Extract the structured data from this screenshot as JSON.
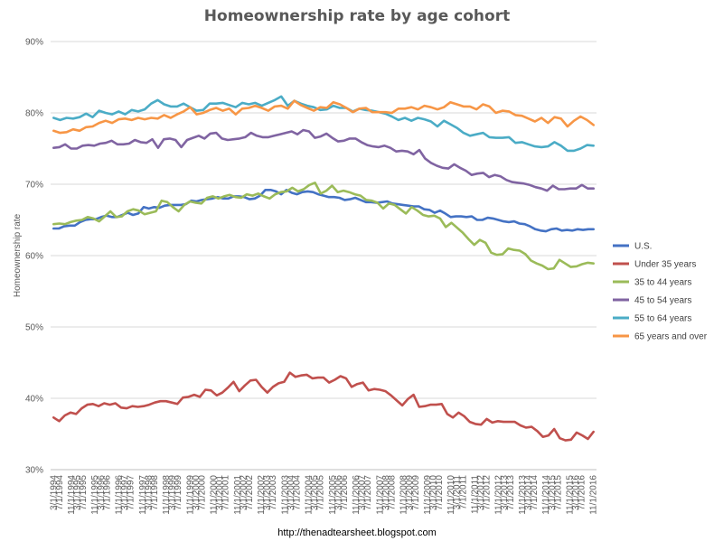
{
  "chart_data": {
    "type": "line",
    "title": "Homeownership rate by age cohort",
    "ylabel": "Homeownership rate",
    "xlabel": "",
    "ylim": [
      30,
      90
    ],
    "yticks": [
      "30%",
      "40%",
      "50%",
      "60%",
      "70%",
      "80%",
      "90%"
    ],
    "grid": "horizontal",
    "legend_position": "right",
    "x_start": "1994Q1",
    "x_tick_labels": [
      "3/1/1994",
      "7/1/1994",
      "11/1/1994",
      "3/1/1995",
      "7/1/1995",
      "11/1/1995",
      "3/1/1996",
      "7/1/1996",
      "11/1/1996",
      "3/1/1997",
      "7/1/1997",
      "11/1/1997",
      "3/1/1998",
      "7/1/1998",
      "11/1/1998",
      "3/1/1999",
      "7/1/1999",
      "11/1/1999",
      "3/1/2000",
      "7/1/2000",
      "11/1/2000",
      "3/1/2001",
      "7/1/2001",
      "11/1/2001",
      "3/1/2002",
      "7/1/2002",
      "11/1/2002",
      "3/1/2003",
      "7/1/2003",
      "11/1/2003",
      "3/1/2004",
      "7/1/2004",
      "11/1/2004",
      "3/1/2005",
      "7/1/2005",
      "11/1/2005",
      "3/1/2006",
      "7/1/2006",
      "11/1/2006",
      "3/1/2007",
      "7/1/2007",
      "11/1/2007",
      "3/1/2008",
      "7/1/2008",
      "11/1/2008",
      "3/1/2009",
      "7/1/2009",
      "11/1/2009",
      "3/1/2010",
      "7/1/2010",
      "11/1/2010",
      "3/1/2011",
      "7/1/2011",
      "11/1/2011",
      "3/1/2012",
      "7/1/2012",
      "11/1/2012",
      "3/1/2013",
      "7/1/2013",
      "11/1/2013",
      "3/1/2014",
      "7/1/2014",
      "11/1/2014",
      "3/1/2015",
      "7/1/2015",
      "11/1/2015",
      "3/1/2016",
      "7/1/2016",
      "11/1/2016"
    ],
    "series": [
      {
        "name": "U.S.",
        "color": "#4472c4",
        "values": [
          63.8,
          63.8,
          64.1,
          64.2,
          64.2,
          64.7,
          65.0,
          65.1,
          65.1,
          65.4,
          65.6,
          65.4,
          65.4,
          65.7,
          66.0,
          65.7,
          65.9,
          66.8,
          66.6,
          66.8,
          66.7,
          67.0,
          67.1,
          67.1,
          67.1,
          67.2,
          67.7,
          67.6,
          67.8,
          67.9,
          68.0,
          68.2,
          68.0,
          68.0,
          68.3,
          68.3,
          68.2,
          67.9,
          68.0,
          68.4,
          69.2,
          69.2,
          69.0,
          68.6,
          69.2,
          68.8,
          68.6,
          68.9,
          69.0,
          68.9,
          68.6,
          68.4,
          68.2,
          68.2,
          68.1,
          67.8,
          67.9,
          68.1,
          67.8,
          67.5,
          67.5,
          67.4,
          67.5,
          67.6,
          67.3,
          67.2,
          67.1,
          67.0,
          66.9,
          66.9,
          66.5,
          66.4,
          66.0,
          66.3,
          65.9,
          65.4,
          65.5,
          65.5,
          65.4,
          65.5,
          65.0,
          65.0,
          65.3,
          65.2,
          65.0,
          64.8,
          64.7,
          64.8,
          64.5,
          64.4,
          64.1,
          63.7,
          63.5,
          63.4,
          63.7,
          63.8,
          63.5,
          63.6,
          63.5,
          63.7,
          63.6,
          63.7,
          63.7
        ]
      },
      {
        "name": "Under 35 years",
        "color": "#c0504d",
        "values": [
          37.3,
          36.8,
          37.6,
          38.0,
          37.8,
          38.6,
          39.1,
          39.2,
          38.9,
          39.3,
          39.1,
          39.3,
          38.7,
          38.6,
          38.9,
          38.8,
          38.9,
          39.1,
          39.4,
          39.6,
          39.6,
          39.4,
          39.2,
          40.1,
          40.2,
          40.5,
          40.2,
          41.2,
          41.1,
          40.4,
          40.8,
          41.5,
          42.3,
          41.0,
          41.8,
          42.5,
          42.6,
          41.6,
          40.8,
          41.6,
          42.1,
          42.3,
          43.6,
          43.0,
          43.2,
          43.3,
          42.8,
          42.9,
          42.9,
          42.2,
          42.6,
          43.1,
          42.8,
          41.6,
          42.0,
          42.2,
          41.1,
          41.3,
          41.2,
          41.0,
          40.4,
          39.7,
          39.0,
          39.9,
          40.5,
          38.8,
          38.9,
          39.1,
          39.1,
          39.2,
          37.8,
          37.3,
          38.0,
          37.5,
          36.7,
          36.4,
          36.3,
          37.1,
          36.6,
          36.8,
          36.7,
          36.7,
          36.7,
          36.2,
          35.9,
          36.0,
          35.4,
          34.6,
          34.8,
          35.7,
          34.4,
          34.1,
          34.2,
          35.2,
          34.8,
          34.3,
          35.3
        ]
      },
      {
        "name": "35 to 44 years",
        "color": "#9bbb59",
        "values": [
          64.4,
          64.5,
          64.4,
          64.7,
          64.9,
          65.0,
          65.4,
          65.2,
          64.8,
          65.5,
          66.2,
          65.4,
          65.5,
          66.2,
          66.5,
          66.3,
          65.8,
          66.0,
          66.2,
          67.7,
          67.5,
          66.8,
          66.2,
          67.1,
          67.6,
          67.4,
          67.3,
          68.1,
          68.3,
          68.0,
          68.3,
          68.5,
          68.2,
          68.1,
          68.6,
          68.4,
          68.7,
          68.3,
          68.0,
          68.6,
          68.9,
          69.0,
          69.5,
          69.0,
          69.3,
          69.9,
          70.2,
          68.7,
          69.1,
          69.8,
          68.9,
          69.1,
          68.9,
          68.6,
          68.4,
          67.8,
          67.7,
          67.4,
          66.6,
          67.3,
          67.1,
          66.5,
          65.9,
          66.8,
          66.3,
          65.7,
          65.5,
          65.6,
          65.2,
          64.0,
          64.6,
          63.9,
          63.2,
          62.3,
          61.5,
          62.2,
          61.8,
          60.4,
          60.1,
          60.2,
          61.0,
          60.8,
          60.7,
          60.2,
          59.3,
          58.9,
          58.6,
          58.1,
          58.2,
          59.4,
          58.9,
          58.4,
          58.5,
          58.8,
          59.0,
          58.9
        ]
      },
      {
        "name": "45 to 54 years",
        "color": "#8064a2",
        "values": [
          75.1,
          75.2,
          75.6,
          75.0,
          75.0,
          75.4,
          75.5,
          75.4,
          75.7,
          75.8,
          76.1,
          75.6,
          75.6,
          75.7,
          76.2,
          75.9,
          75.8,
          76.3,
          75.1,
          76.3,
          76.4,
          76.2,
          75.2,
          76.2,
          76.5,
          76.8,
          76.4,
          77.1,
          77.2,
          76.4,
          76.2,
          76.3,
          76.4,
          76.6,
          77.2,
          76.8,
          76.6,
          76.6,
          76.8,
          77.0,
          77.2,
          77.4,
          77.0,
          77.6,
          77.4,
          76.5,
          76.7,
          77.1,
          76.5,
          76.0,
          76.1,
          76.4,
          76.4,
          75.9,
          75.5,
          75.3,
          75.2,
          75.4,
          75.1,
          74.6,
          74.7,
          74.6,
          74.2,
          74.8,
          73.6,
          73.0,
          72.6,
          72.3,
          72.2,
          72.8,
          72.3,
          71.9,
          71.3,
          71.5,
          71.6,
          71.0,
          71.3,
          71.1,
          70.6,
          70.3,
          70.2,
          70.1,
          69.9,
          69.6,
          69.4,
          69.1,
          69.8,
          69.3,
          69.3,
          69.4,
          69.4,
          69.9,
          69.4,
          69.4
        ]
      },
      {
        "name": "55 to 64 years",
        "color": "#4bacc6",
        "values": [
          79.3,
          79.0,
          79.3,
          79.2,
          79.4,
          79.9,
          79.4,
          80.3,
          80.0,
          79.8,
          80.2,
          79.8,
          80.4,
          80.2,
          80.5,
          81.3,
          81.8,
          81.2,
          80.9,
          80.9,
          81.3,
          80.8,
          80.3,
          80.4,
          81.3,
          81.3,
          81.4,
          81.1,
          80.8,
          81.4,
          81.2,
          81.4,
          81.0,
          81.4,
          81.8,
          82.3,
          81.0,
          81.7,
          81.3,
          81.0,
          80.8,
          80.4,
          80.5,
          81.0,
          80.7,
          80.7,
          80.2,
          80.6,
          80.4,
          80.3,
          80.1,
          79.9,
          79.5,
          79.0,
          79.3,
          78.9,
          79.3,
          79.1,
          78.8,
          78.1,
          78.9,
          78.4,
          77.9,
          77.2,
          76.8,
          77.0,
          77.2,
          76.6,
          76.5,
          76.5,
          76.6,
          75.8,
          75.9,
          75.6,
          75.3,
          75.2,
          75.3,
          75.9,
          75.4,
          74.7,
          74.7,
          75.0,
          75.5,
          75.4
        ]
      },
      {
        "name": "65 years and over",
        "color": "#f79646",
        "values": [
          77.5,
          77.2,
          77.3,
          77.7,
          77.5,
          78.0,
          78.1,
          78.6,
          78.9,
          78.6,
          79.1,
          79.2,
          79.0,
          79.3,
          79.1,
          79.3,
          79.2,
          79.7,
          79.3,
          79.8,
          80.2,
          80.8,
          79.8,
          80.0,
          80.4,
          80.7,
          80.3,
          80.6,
          79.8,
          80.6,
          80.7,
          81.0,
          80.7,
          80.3,
          80.9,
          81.0,
          80.6,
          81.7,
          81.1,
          80.7,
          80.3,
          80.8,
          80.7,
          81.5,
          81.2,
          80.7,
          80.1,
          80.6,
          80.7,
          80.1,
          80.1,
          80.1,
          80.0,
          80.6,
          80.6,
          80.8,
          80.5,
          81.0,
          80.8,
          80.5,
          80.8,
          81.5,
          81.2,
          80.9,
          80.9,
          80.5,
          81.2,
          80.9,
          80.0,
          80.3,
          80.2,
          79.7,
          79.6,
          79.2,
          78.8,
          79.3,
          78.6,
          79.4,
          79.2,
          78.1,
          78.9,
          79.5,
          79.0,
          78.3
        ]
      }
    ]
  },
  "footer": {
    "credit": "http://thenadtearsheet.blogspot.com"
  }
}
